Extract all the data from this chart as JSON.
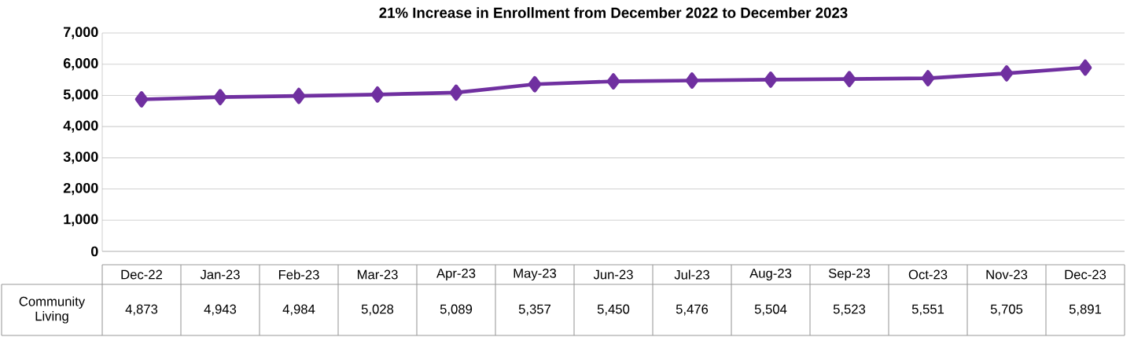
{
  "chart_data": {
    "type": "line",
    "title": "21% Increase in Enrollment from December 2022 to December 2023",
    "categories": [
      "Dec-22",
      "Jan-23",
      "Feb-23",
      "Mar-23",
      "Apr-23",
      "May-23",
      "Jun-23",
      "Jul-23",
      "Aug-23",
      "Sep-23",
      "Oct-23",
      "Nov-23",
      "Dec-23"
    ],
    "series": [
      {
        "name": "Community Living",
        "color": "#7030a0",
        "values": [
          4873,
          4943,
          4984,
          5028,
          5089,
          5357,
          5450,
          5476,
          5504,
          5523,
          5551,
          5705,
          5891
        ],
        "value_labels": [
          "4,873",
          "4,943",
          "4,984",
          "5,028",
          "5,089",
          "5,357",
          "5,450",
          "5,476",
          "5,504",
          "5,523",
          "5,551",
          "5,705",
          "5,891"
        ]
      }
    ],
    "ylim": [
      0,
      7000
    ],
    "yticks": [
      0,
      {
        "value": 1000,
        "label": "1,000"
      },
      {
        "value": 2000,
        "label": "2,000"
      },
      {
        "value": 3000,
        "label": "3,000"
      },
      {
        "value": 4000,
        "label": "4,000"
      },
      {
        "value": 5000,
        "label": "5,000"
      },
      {
        "value": 6000,
        "label": "6,000"
      },
      {
        "value": 7000,
        "label": "7,000"
      }
    ],
    "grid": "y",
    "marker": "diamond",
    "line_style": "solid"
  }
}
